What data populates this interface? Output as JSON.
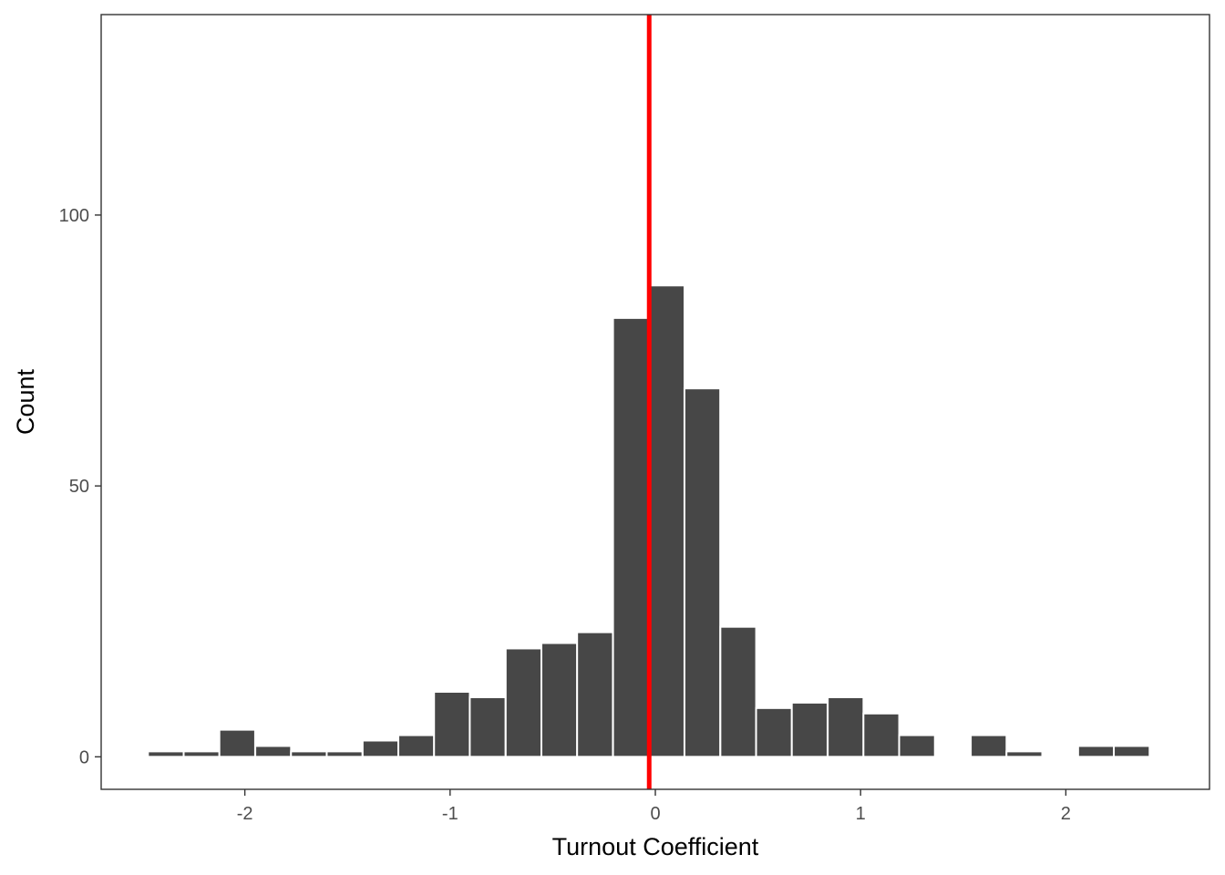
{
  "chart_data": {
    "type": "bar",
    "title": "",
    "xlabel": "Turnout Coefficient",
    "ylabel": "Count",
    "xlim": [
      -2.7,
      2.7
    ],
    "ylim": [
      -6,
      137
    ],
    "x_ticks": [
      -2,
      -1,
      0,
      1,
      2
    ],
    "x_tick_labels": [
      "-2",
      "-1",
      "0",
      "1",
      "2"
    ],
    "y_ticks": [
      0,
      50,
      100
    ],
    "y_tick_labels": [
      "0",
      "50",
      "100"
    ],
    "grid": false,
    "bin_width": 0.1743,
    "bins": [
      {
        "x": -2.385,
        "count": 1
      },
      {
        "x": -2.211,
        "count": 1
      },
      {
        "x": -2.037,
        "count": 5
      },
      {
        "x": -1.862,
        "count": 2
      },
      {
        "x": -1.688,
        "count": 1
      },
      {
        "x": -1.514,
        "count": 1
      },
      {
        "x": -1.339,
        "count": 3
      },
      {
        "x": -1.165,
        "count": 4
      },
      {
        "x": -0.991,
        "count": 12
      },
      {
        "x": -0.817,
        "count": 11
      },
      {
        "x": -0.642,
        "count": 20
      },
      {
        "x": -0.468,
        "count": 21
      },
      {
        "x": -0.294,
        "count": 23
      },
      {
        "x": -0.119,
        "count": 81
      },
      {
        "x": 0.055,
        "count": 87
      },
      {
        "x": 0.229,
        "count": 68
      },
      {
        "x": 0.404,
        "count": 24
      },
      {
        "x": 0.578,
        "count": 9
      },
      {
        "x": 0.752,
        "count": 10
      },
      {
        "x": 0.927,
        "count": 11
      },
      {
        "x": 1.101,
        "count": 8
      },
      {
        "x": 1.275,
        "count": 4
      },
      {
        "x": 1.449,
        "count": 0
      },
      {
        "x": 1.624,
        "count": 4
      },
      {
        "x": 1.798,
        "count": 1
      },
      {
        "x": 1.972,
        "count": 0
      },
      {
        "x": 2.147,
        "count": 2
      },
      {
        "x": 2.321,
        "count": 2
      }
    ],
    "reference_line": {
      "x": -0.03,
      "color": "#ff0000"
    },
    "colors": {
      "bar_fill": "#474747",
      "bar_outline": "#ffffff",
      "panel_border": "#333333",
      "tick": "#333333"
    }
  }
}
